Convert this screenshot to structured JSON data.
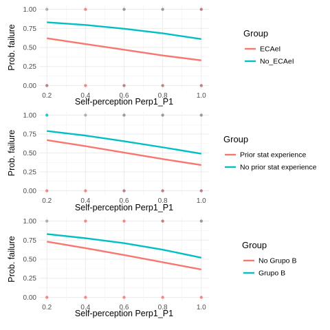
{
  "chart_data": [
    {
      "type": "line",
      "xlabel": "Self-perception Perp1_P1",
      "ylabel": "Prob. failure",
      "xlim": [
        0.2,
        1.0
      ],
      "ylim": [
        0,
        1
      ],
      "x_ticks": [
        "0.2",
        "0.4",
        "0.6",
        "0.8",
        "1.0"
      ],
      "y_ticks": [
        "0.00",
        "0.25",
        "0.50",
        "0.75",
        "1.00"
      ],
      "grid": true,
      "legend_position": "right",
      "legend_title": "Group",
      "series": [
        {
          "name": "ECAeI",
          "color": "#F8766D",
          "x": [
            0.2,
            0.4,
            0.6,
            0.8,
            1.0
          ],
          "y": [
            0.62,
            0.545,
            0.47,
            0.395,
            0.33
          ]
        },
        {
          "name": "No_ECAeI",
          "color": "#00BFC4",
          "x": [
            0.2,
            0.4,
            0.6,
            0.8,
            1.0
          ],
          "y": [
            0.83,
            0.795,
            0.745,
            0.685,
            0.61
          ]
        }
      ],
      "points": [
        {
          "x": 0.2,
          "y": 1,
          "color": "#A3A3A3"
        },
        {
          "x": 0.4,
          "y": 1,
          "color": "#F8766D"
        },
        {
          "x": 0.6,
          "y": 1,
          "color": "#7F8F8F"
        },
        {
          "x": 0.8,
          "y": 1,
          "color": "#7F8F8F"
        },
        {
          "x": 1.0,
          "y": 1,
          "color": "#B07070"
        },
        {
          "x": 0.2,
          "y": 0,
          "color": "#B07070"
        },
        {
          "x": 0.4,
          "y": 0,
          "color": "#F8766D"
        },
        {
          "x": 0.6,
          "y": 0,
          "color": "#B07070"
        },
        {
          "x": 0.8,
          "y": 0,
          "color": "#B07070"
        },
        {
          "x": 1.0,
          "y": 0,
          "color": "#B07070"
        }
      ]
    },
    {
      "type": "line",
      "xlabel": "Self-perception Perp1_P1",
      "ylabel": "Prob. failure",
      "xlim": [
        0.2,
        1.0
      ],
      "ylim": [
        0,
        1
      ],
      "x_ticks": [
        "0.2",
        "0.4",
        "0.6",
        "0.8",
        "1.0"
      ],
      "y_ticks": [
        "0.00",
        "0.25",
        "0.50",
        "0.75",
        "1.00"
      ],
      "grid": true,
      "legend_position": "right",
      "legend_title": "Group",
      "series": [
        {
          "name": "Prior stat experience",
          "color": "#F8766D",
          "x": [
            0.2,
            0.4,
            0.6,
            0.8,
            1.0
          ],
          "y": [
            0.67,
            0.59,
            0.505,
            0.42,
            0.34
          ]
        },
        {
          "name": "No prior stat experience",
          "color": "#00BFC4",
          "x": [
            0.2,
            0.4,
            0.6,
            0.8,
            1.0
          ],
          "y": [
            0.79,
            0.73,
            0.655,
            0.575,
            0.49
          ]
        }
      ],
      "points": [
        {
          "x": 0.2,
          "y": 1,
          "color": "#00BFC4"
        },
        {
          "x": 0.4,
          "y": 1,
          "color": "#A3A3A3"
        },
        {
          "x": 0.6,
          "y": 1,
          "color": "#7F8F8F"
        },
        {
          "x": 0.8,
          "y": 1,
          "color": "#7F8F8F"
        },
        {
          "x": 1.0,
          "y": 1,
          "color": "#7F8F8F"
        },
        {
          "x": 0.2,
          "y": 0,
          "color": "#F8766D"
        },
        {
          "x": 0.4,
          "y": 0,
          "color": "#F8766D"
        },
        {
          "x": 0.6,
          "y": 0,
          "color": "#B07070"
        },
        {
          "x": 0.8,
          "y": 0,
          "color": "#B07070"
        },
        {
          "x": 1.0,
          "y": 0,
          "color": "#B07070"
        }
      ]
    },
    {
      "type": "line",
      "xlabel": "Self-perception Perp1_P1",
      "ylabel": "Prob. failure",
      "xlim": [
        0.2,
        1.0
      ],
      "ylim": [
        0,
        1
      ],
      "x_ticks": [
        "0.2",
        "0.4",
        "0.6",
        "0.8",
        "1.0"
      ],
      "y_ticks": [
        "0.00",
        "0.25",
        "0.50",
        "0.75",
        "1.00"
      ],
      "grid": true,
      "legend_position": "right",
      "legend_title": "Group",
      "series": [
        {
          "name": "No Grupo B",
          "color": "#F8766D",
          "x": [
            0.2,
            0.4,
            0.6,
            0.8,
            1.0
          ],
          "y": [
            0.73,
            0.645,
            0.555,
            0.46,
            0.365
          ]
        },
        {
          "name": "Grupo B",
          "color": "#00BFC4",
          "x": [
            0.2,
            0.4,
            0.6,
            0.8,
            1.0
          ],
          "y": [
            0.83,
            0.775,
            0.71,
            0.625,
            0.52
          ]
        }
      ],
      "points": [
        {
          "x": 0.2,
          "y": 1,
          "color": "#A3A3A3"
        },
        {
          "x": 0.4,
          "y": 1,
          "color": "#F8766D"
        },
        {
          "x": 0.6,
          "y": 1,
          "color": "#F8766D"
        },
        {
          "x": 0.8,
          "y": 1,
          "color": "#B07070"
        },
        {
          "x": 1.0,
          "y": 1,
          "color": "#7F8F8F"
        },
        {
          "x": 0.2,
          "y": 0,
          "color": "#F8766D"
        },
        {
          "x": 0.4,
          "y": 0,
          "color": "#F8766D"
        },
        {
          "x": 0.6,
          "y": 0,
          "color": "#F8766D"
        },
        {
          "x": 0.8,
          "y": 0,
          "color": "#F8766D"
        },
        {
          "x": 1.0,
          "y": 0,
          "color": "#F8766D"
        }
      ]
    }
  ]
}
